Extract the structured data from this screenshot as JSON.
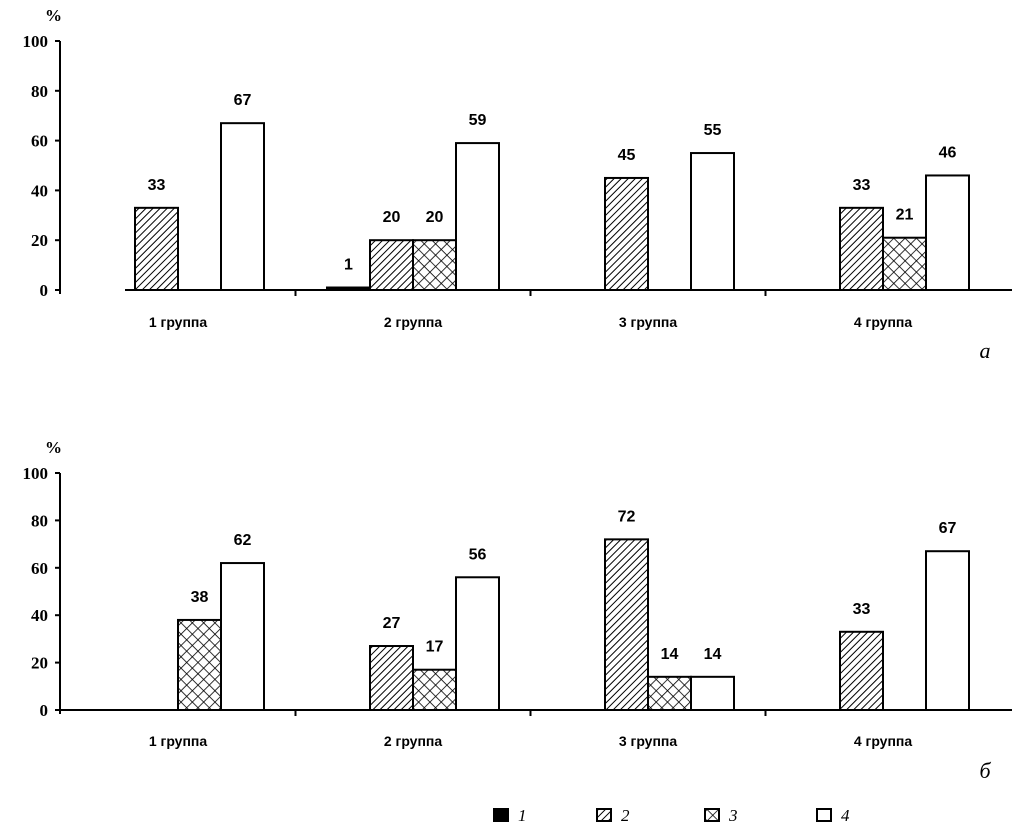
{
  "chart_data": [
    {
      "type": "bar",
      "panel_label": "а",
      "ylabel": "%",
      "ylim": [
        0,
        100
      ],
      "yticks": [
        0,
        20,
        40,
        60,
        80,
        100
      ],
      "grid": false,
      "categories": [
        "1 группа",
        "2 группа",
        "3 группа",
        "4 группа"
      ],
      "series": [
        {
          "name": "1",
          "values": [
            0,
            1,
            0,
            0
          ],
          "labels": [
            "",
            "1",
            "",
            ""
          ]
        },
        {
          "name": "2",
          "values": [
            33,
            20,
            45,
            33
          ],
          "labels": [
            "33",
            "20",
            "45",
            "33"
          ]
        },
        {
          "name": "3",
          "values": [
            0,
            20,
            0,
            21
          ],
          "labels": [
            "",
            "20",
            "",
            "21"
          ]
        },
        {
          "name": "4",
          "values": [
            67,
            59,
            55,
            46
          ],
          "labels": [
            "67",
            "59",
            "55",
            "46"
          ]
        }
      ]
    },
    {
      "type": "bar",
      "panel_label": "б",
      "ylabel": "%",
      "ylim": [
        0,
        100
      ],
      "yticks": [
        0,
        20,
        40,
        60,
        80,
        100
      ],
      "grid": false,
      "categories": [
        "1 группа",
        "2 группа",
        "3 группа",
        "4 группа"
      ],
      "series": [
        {
          "name": "1",
          "values": [
            0,
            0,
            0,
            0
          ],
          "labels": [
            "",
            "",
            "",
            ""
          ]
        },
        {
          "name": "2",
          "values": [
            0,
            27,
            72,
            33
          ],
          "labels": [
            "",
            "27",
            "72",
            "33"
          ]
        },
        {
          "name": "3",
          "values": [
            38,
            17,
            14,
            0
          ],
          "labels": [
            "38",
            "17",
            "14",
            ""
          ]
        },
        {
          "name": "4",
          "values": [
            62,
            56,
            14,
            67
          ],
          "labels": [
            "62",
            "56",
            "14",
            "67"
          ]
        }
      ]
    }
  ],
  "legend": {
    "placement": "bottom",
    "items": [
      {
        "label": "1",
        "fill": "solid-black"
      },
      {
        "label": "2",
        "fill": "diagonal-hatch"
      },
      {
        "label": "3",
        "fill": "crosshatch"
      },
      {
        "label": "4",
        "fill": "white"
      }
    ]
  },
  "colors": {
    "ink": "#000000",
    "background": "#ffffff"
  }
}
